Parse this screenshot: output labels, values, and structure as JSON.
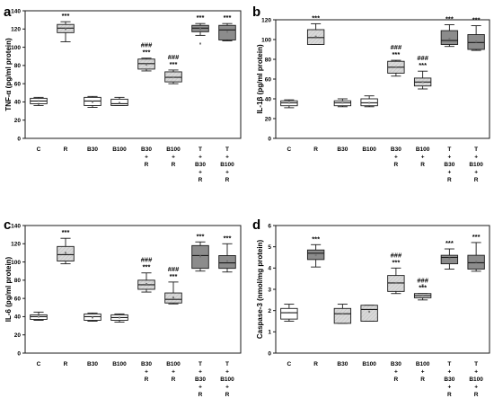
{
  "chart_data": [
    {
      "panel": "a",
      "type": "box",
      "ylabel": "TNF-α (pg/ml protein)",
      "ylim": [
        0,
        140
      ],
      "yticks": [
        0,
        20,
        40,
        60,
        80,
        100,
        120,
        140
      ],
      "categories": [
        [
          "C"
        ],
        [
          "R"
        ],
        [
          "B30"
        ],
        [
          "B100"
        ],
        [
          "B30",
          "+",
          "R"
        ],
        [
          "B100",
          "+",
          "R"
        ],
        [
          "T",
          "+",
          "B30",
          "+",
          "R"
        ],
        [
          "T",
          "+",
          "B100",
          "+",
          "R"
        ]
      ],
      "boxes": [
        {
          "whisker_low": 36,
          "q1": 38,
          "median": 41,
          "q3": 44,
          "whisker_high": 45,
          "mean": 41,
          "fill": "white"
        },
        {
          "whisker_low": 106,
          "q1": 116,
          "median": 121,
          "q3": 125,
          "whisker_high": 128,
          "mean": 120,
          "fill": "light"
        },
        {
          "whisker_low": 34,
          "q1": 36,
          "median": 41,
          "q3": 45,
          "whisker_high": 46,
          "mean": 40,
          "fill": "white"
        },
        {
          "whisker_low": 36,
          "q1": 36,
          "median": 38,
          "q3": 43,
          "whisker_high": 45,
          "mean": 39,
          "fill": "white"
        },
        {
          "whisker_low": 74,
          "q1": 76,
          "median": 82,
          "q3": 87,
          "whisker_high": 88,
          "mean": 81,
          "fill": "light"
        },
        {
          "whisker_low": 60,
          "q1": 62,
          "median": 67,
          "q3": 73,
          "whisker_high": 75,
          "mean": 67,
          "fill": "light"
        },
        {
          "whisker_low": 113,
          "q1": 117,
          "median": 121,
          "q3": 124,
          "whisker_high": 126,
          "mean": 120,
          "outlier": 104,
          "fill": "dark"
        },
        {
          "whisker_low": 107,
          "q1": 108,
          "median": 119,
          "q3": 124,
          "whisker_high": 126,
          "mean": 117,
          "fill": "dark"
        }
      ],
      "annotations": [
        {
          "index": 1,
          "lines": [
            "***"
          ]
        },
        {
          "index": 4,
          "lines": [
            "###",
            "***"
          ]
        },
        {
          "index": 5,
          "lines": [
            "###",
            "***"
          ]
        },
        {
          "index": 6,
          "lines": [
            "***"
          ]
        },
        {
          "index": 7,
          "lines": [
            "***"
          ]
        }
      ]
    },
    {
      "panel": "b",
      "type": "box",
      "ylabel": "IL-1β (pg/ml protein)",
      "ylim": [
        0,
        120
      ],
      "yticks": [
        0,
        20,
        40,
        60,
        80,
        100,
        120
      ],
      "categories": [
        [
          "C"
        ],
        [
          "R"
        ],
        [
          "B30"
        ],
        [
          "B100"
        ],
        [
          "B30",
          "+",
          "R"
        ],
        [
          "B100",
          "+",
          "R"
        ],
        [
          "T",
          "+",
          "B30",
          "+",
          "R"
        ],
        [
          "T",
          "+",
          "B100",
          "+",
          "R"
        ]
      ],
      "boxes": [
        {
          "whisker_low": 31,
          "q1": 33,
          "median": 36,
          "q3": 38,
          "whisker_high": 39,
          "mean": 36,
          "fill": "white"
        },
        {
          "whisker_low": 95,
          "q1": 95,
          "median": 102,
          "q3": 110,
          "whisker_high": 116,
          "mean": 103,
          "fill": "light"
        },
        {
          "whisker_low": 32,
          "q1": 33,
          "median": 36,
          "q3": 38,
          "whisker_high": 40,
          "mean": 36,
          "fill": "white"
        },
        {
          "whisker_low": 32,
          "q1": 33,
          "median": 36,
          "q3": 40,
          "whisker_high": 43,
          "mean": 36,
          "fill": "white"
        },
        {
          "whisker_low": 63,
          "q1": 66,
          "median": 72,
          "q3": 78,
          "whisker_high": 79,
          "mean": 72,
          "fill": "light"
        },
        {
          "whisker_low": 50,
          "q1": 53,
          "median": 57,
          "q3": 61,
          "whisker_high": 68,
          "mean": 57,
          "fill": "light"
        },
        {
          "whisker_low": 93,
          "q1": 95,
          "median": 99,
          "q3": 109,
          "whisker_high": 115,
          "mean": 101,
          "fill": "dark"
        },
        {
          "whisker_low": 89,
          "q1": 90,
          "median": 97,
          "q3": 105,
          "whisker_high": 114,
          "mean": 98,
          "fill": "dark"
        }
      ],
      "annotations": [
        {
          "index": 1,
          "lines": [
            "***"
          ]
        },
        {
          "index": 4,
          "lines": [
            "###",
            "***"
          ]
        },
        {
          "index": 5,
          "lines": [
            "###",
            "***"
          ]
        },
        {
          "index": 6,
          "lines": [
            "***"
          ]
        },
        {
          "index": 7,
          "lines": [
            "***"
          ]
        }
      ]
    },
    {
      "panel": "c",
      "type": "box",
      "ylabel": "IL-6 (pg/ml protein)",
      "ylim": [
        0,
        140
      ],
      "yticks": [
        0,
        20,
        40,
        60,
        80,
        100,
        120,
        140
      ],
      "categories": [
        [
          "C"
        ],
        [
          "R"
        ],
        [
          "B30"
        ],
        [
          "B100"
        ],
        [
          "B30",
          "+",
          "R"
        ],
        [
          "B100",
          "+",
          "R"
        ],
        [
          "T",
          "+",
          "B30",
          "+",
          "R"
        ],
        [
          "T",
          "+",
          "B100",
          "+",
          "R"
        ]
      ],
      "boxes": [
        {
          "whisker_low": 36,
          "q1": 37,
          "median": 40,
          "q3": 42,
          "whisker_high": 45,
          "mean": 40,
          "fill": "white"
        },
        {
          "whisker_low": 98,
          "q1": 101,
          "median": 108,
          "q3": 117,
          "whisker_high": 126,
          "mean": 110,
          "fill": "light"
        },
        {
          "whisker_low": 35,
          "q1": 36,
          "median": 40,
          "q3": 43,
          "whisker_high": 44,
          "mean": 39,
          "fill": "white"
        },
        {
          "whisker_low": 34,
          "q1": 36,
          "median": 39,
          "q3": 42,
          "whisker_high": 43,
          "mean": 39,
          "fill": "white"
        },
        {
          "whisker_low": 67,
          "q1": 70,
          "median": 75,
          "q3": 80,
          "whisker_high": 88,
          "mean": 76,
          "fill": "light"
        },
        {
          "whisker_low": 54,
          "q1": 55,
          "median": 59,
          "q3": 66,
          "whisker_high": 78,
          "mean": 61,
          "fill": "light"
        },
        {
          "whisker_low": 90,
          "q1": 93,
          "median": 107,
          "q3": 118,
          "whisker_high": 122,
          "mean": 106,
          "fill": "dark"
        },
        {
          "whisker_low": 89,
          "q1": 93,
          "median": 99,
          "q3": 107,
          "whisker_high": 120,
          "mean": 101,
          "fill": "dark"
        }
      ],
      "annotations": [
        {
          "index": 1,
          "lines": [
            "***"
          ]
        },
        {
          "index": 4,
          "lines": [
            "###",
            "***"
          ]
        },
        {
          "index": 5,
          "lines": [
            "###",
            "***"
          ]
        },
        {
          "index": 6,
          "lines": [
            "***"
          ]
        },
        {
          "index": 7,
          "lines": [
            "***"
          ]
        }
      ]
    },
    {
      "panel": "d",
      "type": "box",
      "ylabel": "Caspase-3 (nmol/mg protein)",
      "ylim": [
        0,
        6
      ],
      "yticks": [
        0,
        1,
        2,
        3,
        4,
        5,
        6
      ],
      "categories": [
        [
          "C"
        ],
        [
          "R"
        ],
        [
          "B30"
        ],
        [
          "B100"
        ],
        [
          "B30",
          "+",
          "R"
        ],
        [
          "B100",
          "+",
          "R"
        ],
        [
          "T",
          "+",
          "B30",
          "+",
          "R"
        ],
        [
          "T",
          "+",
          "B100",
          "+",
          "R"
        ]
      ],
      "boxes": [
        {
          "whisker_low": 1.5,
          "q1": 1.6,
          "median": 1.9,
          "q3": 2.1,
          "whisker_high": 2.3,
          "mean": 1.9,
          "fill": "white"
        },
        {
          "whisker_low": 4.05,
          "q1": 4.4,
          "median": 4.7,
          "q3": 4.85,
          "whisker_high": 5.1,
          "mean": 4.6,
          "fill": "dark"
        },
        {
          "whisker_low": 1.4,
          "q1": 1.4,
          "median": 1.85,
          "q3": 2.1,
          "whisker_high": 2.3,
          "mean": 1.85,
          "fill": "light"
        },
        {
          "whisker_low": 1.5,
          "q1": 1.5,
          "median": 2.05,
          "q3": 2.25,
          "whisker_high": 2.25,
          "mean": 1.95,
          "fill": "light"
        },
        {
          "whisker_low": 2.8,
          "q1": 2.9,
          "median": 3.3,
          "q3": 3.65,
          "whisker_high": 4.0,
          "mean": 3.3,
          "fill": "light"
        },
        {
          "whisker_low": 2.5,
          "q1": 2.6,
          "median": 2.7,
          "q3": 2.8,
          "whisker_high": 2.8,
          "mean": 2.7,
          "outlier": 3.2,
          "fill": "light"
        },
        {
          "whisker_low": 3.95,
          "q1": 4.2,
          "median": 4.5,
          "q3": 4.6,
          "whisker_high": 4.9,
          "mean": 4.45,
          "fill": "dark"
        },
        {
          "whisker_low": 3.85,
          "q1": 3.95,
          "median": 4.25,
          "q3": 4.6,
          "whisker_high": 5.2,
          "mean": 4.3,
          "fill": "dark"
        }
      ],
      "annotations": [
        {
          "index": 1,
          "lines": [
            "***"
          ]
        },
        {
          "index": 4,
          "lines": [
            "###",
            "***"
          ]
        },
        {
          "index": 5,
          "lines": [
            "###",
            "***"
          ]
        },
        {
          "index": 6,
          "lines": [
            "***"
          ]
        },
        {
          "index": 7,
          "lines": [
            "***"
          ]
        }
      ]
    }
  ],
  "colors": {
    "white": "#ffffff",
    "light": "#d9d9d9",
    "dark": "#8c8c8c",
    "line": "#1a1a1a",
    "mean": "#777777"
  }
}
